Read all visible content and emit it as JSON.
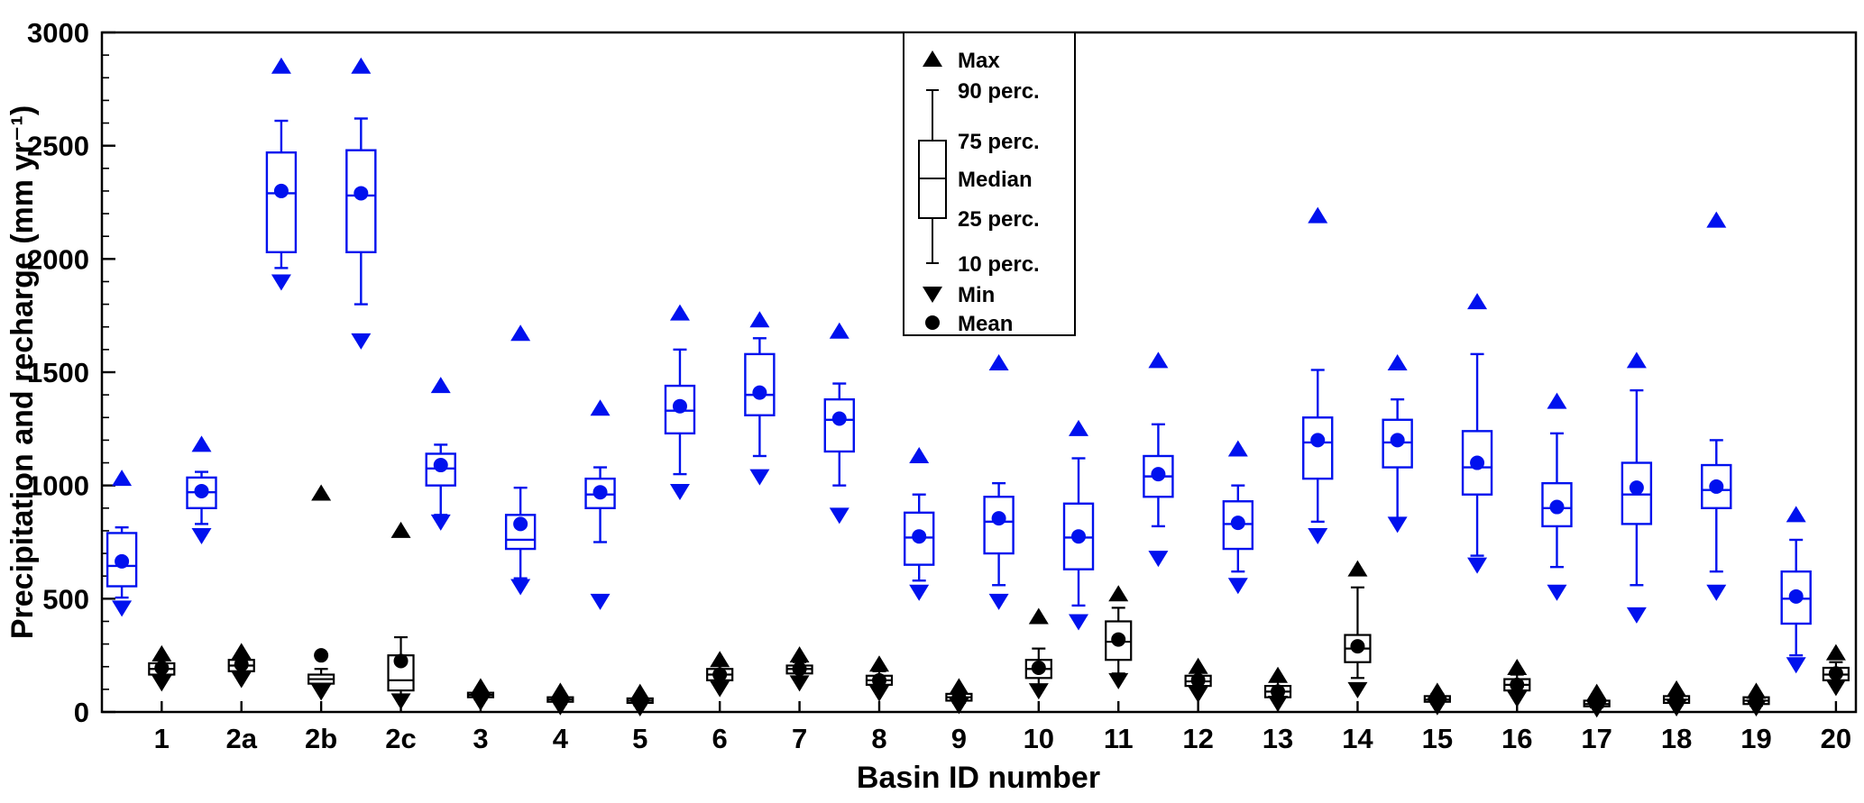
{
  "chart_data": {
    "type": "boxplot",
    "title": "",
    "xlabel": "Basin ID number",
    "ylabel": "Precipitation and recharge (mm yr⁻¹)",
    "ylim": [
      0,
      3000
    ],
    "yticks": [
      0,
      500,
      1000,
      1500,
      2000,
      2500,
      3000
    ],
    "y_minor_step": 100,
    "grid": false,
    "legend_position": "top-center",
    "legend": {
      "items": [
        "Max",
        "90 perc.",
        "75 perc.",
        "Median",
        "25 perc.",
        "10 perc.",
        "Min",
        "Mean"
      ]
    },
    "categories": [
      "1",
      "2a",
      "2b",
      "2c",
      "3",
      "4",
      "5",
      "6",
      "7",
      "8",
      "9",
      "10",
      "11",
      "12",
      "13",
      "14",
      "15",
      "16",
      "17",
      "18",
      "19",
      "20"
    ],
    "series": [
      {
        "name": "Precipitation",
        "color": "#0011ee",
        "stats": [
          {
            "min": 460,
            "p10": 505,
            "p25": 555,
            "med": 645,
            "p75": 790,
            "p90": 815,
            "max": 1030,
            "mean": 665
          },
          {
            "min": 780,
            "p10": 830,
            "p25": 900,
            "med": 970,
            "p75": 1035,
            "p90": 1060,
            "max": 1180,
            "mean": 975
          },
          {
            "min": 1900,
            "p10": 1960,
            "p25": 2030,
            "med": 2290,
            "p75": 2470,
            "p90": 2610,
            "max": 2850,
            "mean": 2300
          },
          {
            "min": 1640,
            "p10": 1800,
            "p25": 2030,
            "med": 2280,
            "p75": 2480,
            "p90": 2620,
            "max": 2850,
            "mean": 2290
          },
          {
            "min": 840,
            "p10": 870,
            "p25": 1000,
            "med": 1075,
            "p75": 1140,
            "p90": 1180,
            "max": 1440,
            "mean": 1090
          },
          {
            "min": 555,
            "p10": 590,
            "p25": 720,
            "med": 760,
            "p75": 870,
            "p90": 990,
            "max": 1670,
            "mean": 830
          },
          {
            "min": 490,
            "p10": 750,
            "p25": 900,
            "med": 960,
            "p75": 1030,
            "p90": 1080,
            "max": 1340,
            "mean": 970
          },
          {
            "min": 975,
            "p10": 1050,
            "p25": 1230,
            "med": 1330,
            "p75": 1440,
            "p90": 1600,
            "max": 1760,
            "mean": 1350
          },
          {
            "min": 1040,
            "p10": 1130,
            "p25": 1310,
            "med": 1400,
            "p75": 1580,
            "p90": 1650,
            "max": 1730,
            "mean": 1410
          },
          {
            "min": 870,
            "p10": 1000,
            "p25": 1150,
            "med": 1290,
            "p75": 1380,
            "p90": 1450,
            "max": 1680,
            "mean": 1295
          },
          {
            "min": 530,
            "p10": 580,
            "p25": 650,
            "med": 770,
            "p75": 880,
            "p90": 960,
            "max": 1130,
            "mean": 775
          },
          {
            "min": 490,
            "p10": 560,
            "p25": 700,
            "med": 840,
            "p75": 950,
            "p90": 1010,
            "max": 1540,
            "mean": 855
          },
          {
            "min": 400,
            "p10": 470,
            "p25": 630,
            "med": 770,
            "p75": 920,
            "p90": 1120,
            "max": 1250,
            "mean": 775
          },
          {
            "min": 680,
            "p10": 820,
            "p25": 950,
            "med": 1040,
            "p75": 1130,
            "p90": 1270,
            "max": 1550,
            "mean": 1050
          },
          {
            "min": 560,
            "p10": 620,
            "p25": 720,
            "med": 830,
            "p75": 930,
            "p90": 1000,
            "max": 1160,
            "mean": 835
          },
          {
            "min": 780,
            "p10": 840,
            "p25": 1030,
            "med": 1190,
            "p75": 1300,
            "p90": 1510,
            "max": 2190,
            "mean": 1200
          },
          {
            "min": 830,
            "p10": 850,
            "p25": 1080,
            "med": 1190,
            "p75": 1290,
            "p90": 1380,
            "max": 1540,
            "mean": 1200
          },
          {
            "min": 650,
            "p10": 690,
            "p25": 960,
            "med": 1080,
            "p75": 1240,
            "p90": 1580,
            "max": 1810,
            "mean": 1100
          },
          {
            "min": 530,
            "p10": 640,
            "p25": 820,
            "med": 900,
            "p75": 1010,
            "p90": 1230,
            "max": 1370,
            "mean": 905
          },
          {
            "min": 430,
            "p10": 560,
            "p25": 830,
            "med": 960,
            "p75": 1100,
            "p90": 1420,
            "max": 1550,
            "mean": 990
          },
          {
            "min": 530,
            "p10": 620,
            "p25": 900,
            "med": 980,
            "p75": 1090,
            "p90": 1200,
            "max": 2170,
            "mean": 995
          },
          {
            "min": 210,
            "p10": 250,
            "p25": 390,
            "med": 500,
            "p75": 620,
            "p90": 760,
            "max": 870,
            "mean": 510
          }
        ]
      },
      {
        "name": "Recharge",
        "color": "#000000",
        "stats": [
          {
            "min": 130,
            "p10": 155,
            "p25": 165,
            "med": 190,
            "p75": 215,
            "p90": 230,
            "max": 255,
            "mean": 195
          },
          {
            "min": 145,
            "p10": 170,
            "p25": 180,
            "med": 205,
            "p75": 230,
            "p90": 245,
            "max": 265,
            "mean": 210
          },
          {
            "min": 90,
            "p10": 110,
            "p25": 125,
            "med": 145,
            "p75": 165,
            "p90": 190,
            "max": 965,
            "mean": 250
          },
          {
            "min": 50,
            "p10": 70,
            "p25": 95,
            "med": 140,
            "p75": 250,
            "p90": 330,
            "max": 800,
            "mean": 225
          },
          {
            "min": 45,
            "p10": 55,
            "p25": 65,
            "med": 75,
            "p75": 85,
            "p90": 95,
            "max": 110,
            "mean": 75
          },
          {
            "min": 25,
            "p10": 35,
            "p25": 45,
            "med": 55,
            "p75": 65,
            "p90": 75,
            "max": 90,
            "mean": 55
          },
          {
            "min": 20,
            "p10": 30,
            "p25": 40,
            "med": 50,
            "p75": 60,
            "p90": 70,
            "max": 85,
            "mean": 50
          },
          {
            "min": 105,
            "p10": 125,
            "p25": 140,
            "med": 165,
            "p75": 190,
            "p90": 205,
            "max": 230,
            "mean": 165
          },
          {
            "min": 130,
            "p10": 150,
            "p25": 170,
            "med": 190,
            "p75": 205,
            "p90": 220,
            "max": 250,
            "mean": 190
          },
          {
            "min": 85,
            "p10": 105,
            "p25": 120,
            "med": 140,
            "p75": 160,
            "p90": 180,
            "max": 210,
            "mean": 140
          },
          {
            "min": 30,
            "p10": 40,
            "p25": 50,
            "med": 65,
            "p75": 80,
            "p90": 95,
            "max": 110,
            "mean": 65
          },
          {
            "min": 95,
            "p10": 120,
            "p25": 150,
            "med": 190,
            "p75": 230,
            "p90": 280,
            "max": 420,
            "mean": 195
          },
          {
            "min": 140,
            "p10": 170,
            "p25": 230,
            "med": 310,
            "p75": 400,
            "p90": 460,
            "max": 520,
            "mean": 320
          },
          {
            "min": 80,
            "p10": 95,
            "p25": 115,
            "med": 135,
            "p75": 160,
            "p90": 175,
            "max": 200,
            "mean": 140
          },
          {
            "min": 40,
            "p10": 55,
            "p25": 65,
            "med": 90,
            "p75": 115,
            "p90": 135,
            "max": 160,
            "mean": 90
          },
          {
            "min": 100,
            "p10": 150,
            "p25": 220,
            "med": 280,
            "p75": 340,
            "p90": 550,
            "max": 630,
            "mean": 290
          },
          {
            "min": 25,
            "p10": 35,
            "p25": 45,
            "med": 55,
            "p75": 70,
            "p90": 80,
            "max": 90,
            "mean": 55
          },
          {
            "min": 60,
            "p10": 75,
            "p25": 95,
            "med": 120,
            "p75": 145,
            "p90": 165,
            "max": 195,
            "mean": 120
          },
          {
            "min": 15,
            "p10": 20,
            "p25": 25,
            "med": 35,
            "p75": 50,
            "p90": 65,
            "max": 85,
            "mean": 40
          },
          {
            "min": 20,
            "p10": 30,
            "p25": 40,
            "med": 55,
            "p75": 70,
            "p90": 85,
            "max": 100,
            "mean": 55
          },
          {
            "min": 20,
            "p10": 28,
            "p25": 35,
            "med": 50,
            "p75": 65,
            "p90": 75,
            "max": 90,
            "mean": 50
          },
          {
            "min": 110,
            "p10": 125,
            "p25": 140,
            "med": 165,
            "p75": 195,
            "p90": 220,
            "max": 260,
            "mean": 170
          }
        ]
      }
    ],
    "colors": {
      "precipitation": "#0011ee",
      "recharge": "#000000",
      "frame": "#000000",
      "background": "#ffffff"
    }
  }
}
